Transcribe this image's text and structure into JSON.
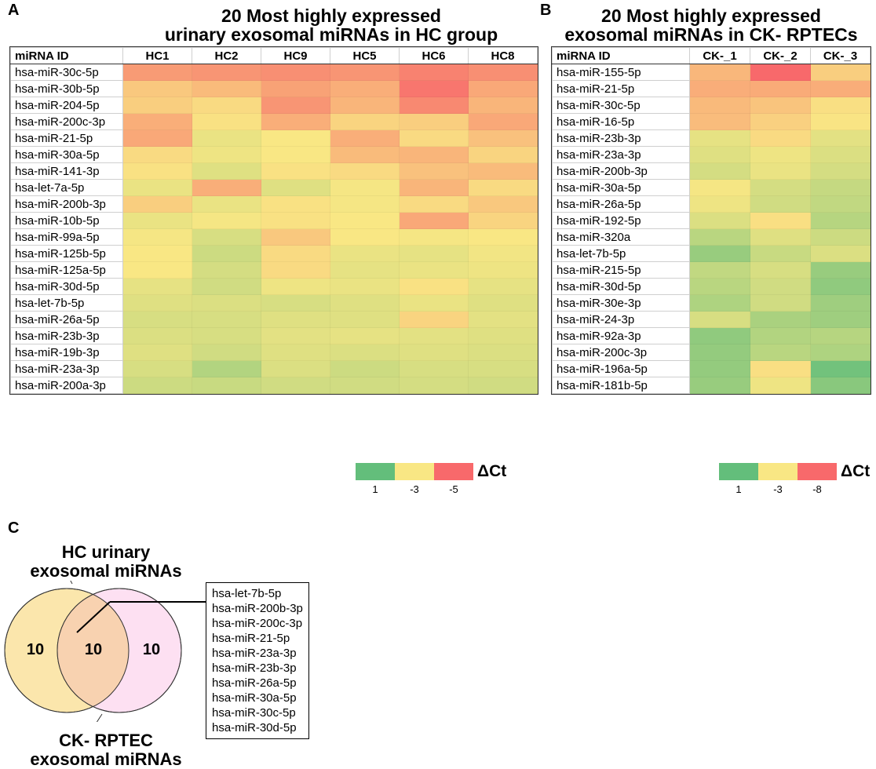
{
  "panel_a": {
    "letter": "A",
    "title_line1": "20 Most highly expressed",
    "title_line2": "urinary exosomal miRNAs in HC group",
    "id_header": "miRNA ID",
    "legend": {
      "label": "ΔCt",
      "ticks": [
        "1",
        "-3",
        "-5"
      ],
      "colors": [
        "#63be7b",
        "#f9e784",
        "#f8696b"
      ]
    }
  },
  "panel_b": {
    "letter": "B",
    "title_line1": "20 Most highly expressed",
    "title_line2": "exosomal miRNAs in CK- RPTECs",
    "id_header": "miRNA ID",
    "legend": {
      "label": "ΔCt",
      "ticks": [
        "1",
        "-3",
        "-8"
      ],
      "colors": [
        "#63be7b",
        "#f9e784",
        "#f8696b"
      ]
    }
  },
  "panel_c": {
    "letter": "C",
    "label_top_line1": "HC urinary",
    "label_top_line2": "exosomal miRNAs",
    "label_bottom_line1": "CK- RPTEC",
    "label_bottom_line2": "exosomal miRNAs",
    "left_only": "10",
    "overlap": "10",
    "right_only": "10",
    "left_color": "#fbe6ac",
    "right_color": "#fde0f2",
    "overlap_color": "#f8d2b0",
    "overlap_list": [
      "hsa-let-7b-5p",
      "hsa-miR-200b-3p",
      "hsa-miR-200c-3p",
      "hsa-miR-21-5p",
      "hsa-miR-23a-3p",
      "hsa-miR-23b-3p",
      "hsa-miR-26a-5p",
      "hsa-miR-30a-5p",
      "hsa-miR-30c-5p",
      "hsa-miR-30d-5p"
    ]
  },
  "chart_data": [
    {
      "type": "heatmap",
      "title": "20 Most highly expressed urinary exosomal miRNAs in HC group",
      "value_name": "ΔCt",
      "scale": {
        "min": -5,
        "mid": -3,
        "max": 1
      },
      "columns": [
        "HC1",
        "HC2",
        "HC9",
        "HC5",
        "HC6",
        "HC8"
      ],
      "rows": [
        "hsa-miR-30c-5p",
        "hsa-miR-30b-5p",
        "hsa-miR-204-5p",
        "hsa-miR-200c-3p",
        "hsa-miR-21-5p",
        "hsa-miR-30a-5p",
        "hsa-miR-141-3p",
        "hsa-let-7a-5p",
        "hsa-miR-200b-3p",
        "hsa-miR-10b-5p",
        "hsa-miR-99a-5p",
        "hsa-miR-125b-5p",
        "hsa-miR-125a-5p",
        "hsa-miR-30d-5p",
        "hsa-let-7b-5p",
        "hsa-miR-26a-5p",
        "hsa-miR-23b-3p",
        "hsa-miR-19b-3p",
        "hsa-miR-23a-3p",
        "hsa-miR-200a-3p"
      ],
      "values": [
        [
          -4.2,
          -4.3,
          -4.4,
          -4.3,
          -4.6,
          -4.4
        ],
        [
          -3.5,
          -3.7,
          -4.1,
          -3.9,
          -4.8,
          -4.0
        ],
        [
          -3.4,
          -3.2,
          -4.3,
          -3.8,
          -4.5,
          -3.8
        ],
        [
          -3.9,
          -3.1,
          -3.9,
          -3.3,
          -3.4,
          -4.0
        ],
        [
          -4.0,
          -2.6,
          -3.0,
          -3.9,
          -3.2,
          -3.6
        ],
        [
          -3.2,
          -2.7,
          -3.0,
          -3.7,
          -3.8,
          -3.3
        ],
        [
          -3.1,
          -2.3,
          -3.1,
          -3.2,
          -3.6,
          -3.7
        ],
        [
          -2.6,
          -3.9,
          -2.3,
          -2.9,
          -3.8,
          -3.2
        ],
        [
          -3.4,
          -2.6,
          -3.1,
          -2.9,
          -3.2,
          -3.5
        ],
        [
          -2.6,
          -2.9,
          -3.1,
          -3.0,
          -4.0,
          -3.3
        ],
        [
          -2.9,
          -2.1,
          -3.5,
          -3.0,
          -2.9,
          -3.0
        ],
        [
          -3.0,
          -1.8,
          -3.2,
          -2.6,
          -2.5,
          -2.8
        ],
        [
          -3.0,
          -2.0,
          -3.2,
          -2.5,
          -2.6,
          -2.7
        ],
        [
          -2.5,
          -1.9,
          -2.7,
          -2.6,
          -3.1,
          -2.5
        ],
        [
          -2.3,
          -2.2,
          -2.1,
          -2.3,
          -2.6,
          -2.3
        ],
        [
          -2.1,
          -2.1,
          -2.3,
          -2.3,
          -3.3,
          -2.4
        ],
        [
          -2.2,
          -2.1,
          -2.4,
          -2.5,
          -2.4,
          -2.3
        ],
        [
          -2.3,
          -1.9,
          -2.3,
          -2.2,
          -2.3,
          -2.2
        ],
        [
          -2.1,
          -1.1,
          -2.2,
          -1.8,
          -2.1,
          -2.1
        ],
        [
          -1.8,
          -1.7,
          -1.9,
          -1.9,
          -2.0,
          -1.9
        ]
      ]
    },
    {
      "type": "heatmap",
      "title": "20 Most highly expressed exosomal miRNAs in CK- RPTECs",
      "value_name": "ΔCt",
      "scale": {
        "min": -8,
        "mid": -3,
        "max": 1
      },
      "columns": [
        "CK-_1",
        "CK-_2",
        "CK-_3"
      ],
      "rows": [
        "hsa-miR-155-5p",
        "hsa-miR-21-5p",
        "hsa-miR-30c-5p",
        "hsa-miR-16-5p",
        "hsa-miR-23b-3p",
        "hsa-miR-23a-3p",
        "hsa-miR-200b-3p",
        "hsa-miR-30a-5p",
        "hsa-miR-26a-5p",
        "hsa-miR-192-5p",
        "hsa-miR-320a",
        "hsa-let-7b-5p",
        "hsa-miR-215-5p",
        "hsa-miR-30d-5p",
        "hsa-miR-30e-3p",
        "hsa-miR-24-3p",
        "hsa-miR-92a-3p",
        "hsa-miR-200c-3p",
        "hsa-miR-196a-5p",
        "hsa-miR-181b-5p"
      ],
      "values": [
        [
          -4.9,
          -8.0,
          -4.0
        ],
        [
          -5.3,
          -5.4,
          -5.3
        ],
        [
          -4.8,
          -4.4,
          -3.3
        ],
        [
          -4.7,
          -3.9,
          -3.1
        ],
        [
          -2.5,
          -3.5,
          -2.4
        ],
        [
          -2.3,
          -2.7,
          -2.2
        ],
        [
          -2.0,
          -2.6,
          -2.0
        ],
        [
          -2.9,
          -2.0,
          -1.6
        ],
        [
          -2.7,
          -1.9,
          -1.5
        ],
        [
          -2.2,
          -3.3,
          -1.2
        ],
        [
          -1.3,
          -2.3,
          -1.8
        ],
        [
          -0.4,
          -1.7,
          -2.2
        ],
        [
          -1.5,
          -2.1,
          -0.4
        ],
        [
          -1.3,
          -1.9,
          -0.2
        ],
        [
          -1.0,
          -1.9,
          -0.6
        ],
        [
          -2.1,
          -0.9,
          -0.6
        ],
        [
          -0.2,
          -1.1,
          -1.2
        ],
        [
          -0.3,
          -1.3,
          -1.0
        ],
        [
          -0.3,
          -3.3,
          0.6
        ],
        [
          -0.4,
          -2.7,
          0.0
        ]
      ]
    }
  ]
}
